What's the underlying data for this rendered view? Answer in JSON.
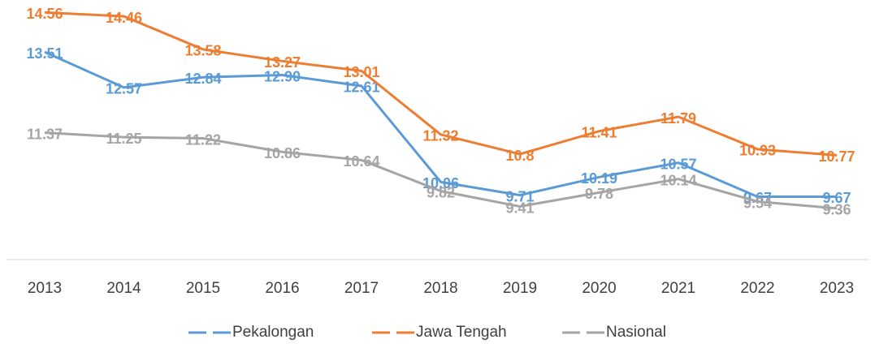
{
  "chart_data": {
    "type": "line",
    "categories": [
      "2013",
      "2014",
      "2015",
      "2016",
      "2017",
      "2018",
      "2019",
      "2020",
      "2021",
      "2022",
      "2023"
    ],
    "series": [
      {
        "name": "Pekalongan",
        "color": "#5b9bd5",
        "values": [
          13.51,
          12.57,
          12.84,
          12.9,
          12.61,
          10.06,
          9.71,
          10.19,
          10.57,
          9.67,
          9.67
        ],
        "value_labels": [
          "13.51",
          "12.57",
          "12.84",
          "12.90",
          "12.61",
          "10.06",
          "9.71",
          "10.19",
          "10.57",
          "9.67",
          "9.67"
        ]
      },
      {
        "name": "Jawa Tengah",
        "color": "#ed7d31",
        "values": [
          14.56,
          14.46,
          13.58,
          13.27,
          13.01,
          11.32,
          10.8,
          11.41,
          11.79,
          10.93,
          10.77
        ],
        "value_labels": [
          "14.56",
          "14.46",
          "13.58",
          "13.27",
          "13.01",
          "11.32",
          "10.8",
          "11.41",
          "11.79",
          "10.93",
          "10.77"
        ]
      },
      {
        "name": "Nasional",
        "color": "#a5a5a5",
        "values": [
          11.37,
          11.25,
          11.22,
          10.86,
          10.64,
          9.82,
          9.41,
          9.78,
          10.14,
          9.54,
          9.36
        ],
        "value_labels": [
          "11.37",
          "11.25",
          "11.22",
          "10.86",
          "10.64",
          "9.82",
          "9.41",
          "9.78",
          "10.14",
          "9.54",
          "9.36"
        ]
      }
    ],
    "ylim": [
      8,
      15
    ],
    "legend": "bottom"
  }
}
